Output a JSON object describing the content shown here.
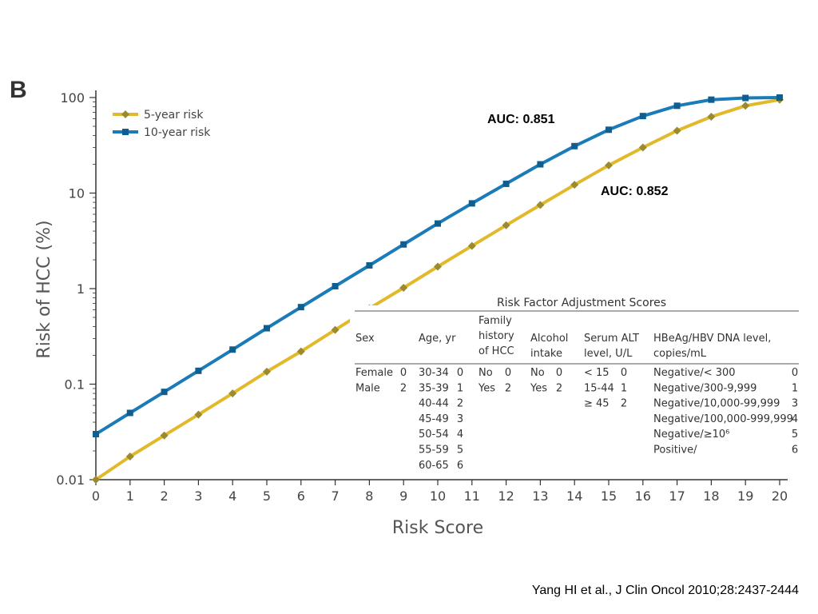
{
  "panel_label": "B",
  "citation": "Yang HI et al., J Clin Oncol 2010;28:2437-2444",
  "colors": {
    "five_year": "#e2b92a",
    "five_year_marker": "#9a8a30",
    "ten_year": "#1a7bb8",
    "ten_year_marker": "#0e5f90",
    "axis": "#333333"
  },
  "chart_data": {
    "type": "line",
    "xlabel": "Risk Score",
    "ylabel": "Risk of HCC (%)",
    "yscale": "log",
    "xlim": [
      0,
      20
    ],
    "ylim": [
      0.01,
      100
    ],
    "x": [
      0,
      1,
      2,
      3,
      4,
      5,
      6,
      7,
      8,
      9,
      10,
      11,
      12,
      13,
      14,
      15,
      16,
      17,
      18,
      19,
      20
    ],
    "x_tick_labels": [
      "0",
      "1",
      "2",
      "3",
      "4",
      "5",
      "6",
      "7",
      "8",
      "9",
      "10",
      "11",
      "12",
      "13",
      "14",
      "15",
      "16",
      "17",
      "18",
      "19",
      "20"
    ],
    "y_ticks": [
      0.01,
      0.1,
      1,
      10,
      100
    ],
    "y_tick_labels": [
      "0.01",
      "0.1",
      "1",
      "10",
      "100"
    ],
    "legend_position": "top-left",
    "series": [
      {
        "name": "5-year risk",
        "marker": "diamond",
        "values": [
          0.01,
          0.0175,
          0.029,
          0.048,
          0.08,
          0.135,
          0.22,
          0.37,
          0.62,
          1.02,
          1.7,
          2.8,
          4.6,
          7.5,
          12.2,
          19.5,
          30.0,
          45.0,
          63.0,
          82.0,
          95.0
        ],
        "annotation": "AUC: 0.852"
      },
      {
        "name": "10-year risk",
        "marker": "square",
        "values": [
          0.03,
          0.05,
          0.083,
          0.138,
          0.23,
          0.385,
          0.64,
          1.06,
          1.75,
          2.9,
          4.8,
          7.8,
          12.5,
          20.0,
          31.0,
          46.0,
          64.0,
          82.0,
          95.0,
          99.0,
          100.0
        ],
        "annotation": "AUC: 0.851"
      }
    ]
  },
  "table": {
    "title": "Risk Factor Adjustment Scores",
    "headers": {
      "sex": "Sex",
      "age": "Age, yr",
      "family": [
        "Family",
        "history",
        "of HCC"
      ],
      "alcohol": [
        "Alcohol",
        "intake"
      ],
      "alt": [
        "Serum ALT",
        "level, U/L"
      ],
      "hbeag": [
        "HBeAg/HBV DNA level,",
        "copies/mL"
      ]
    },
    "sex": [
      {
        "label": "Female",
        "score": "0"
      },
      {
        "label": "Male",
        "score": "2"
      }
    ],
    "age": [
      {
        "label": "30-34",
        "score": "0"
      },
      {
        "label": "35-39",
        "score": "1"
      },
      {
        "label": "40-44",
        "score": "2"
      },
      {
        "label": "45-49",
        "score": "3"
      },
      {
        "label": "50-54",
        "score": "4"
      },
      {
        "label": "55-59",
        "score": "5"
      },
      {
        "label": "60-65",
        "score": "6"
      }
    ],
    "family": [
      {
        "label": "No",
        "score": "0"
      },
      {
        "label": "Yes",
        "score": "2"
      }
    ],
    "alcohol": [
      {
        "label": "No",
        "score": "0"
      },
      {
        "label": "Yes",
        "score": "2"
      }
    ],
    "alt": [
      {
        "label": "< 15",
        "score": "0"
      },
      {
        "label": "15-44",
        "score": "1"
      },
      {
        "label": "≥ 45",
        "score": "2"
      }
    ],
    "hbeag": [
      {
        "label": "Negative/< 300",
        "score": "0"
      },
      {
        "label": "Negative/300-9,999",
        "score": "1"
      },
      {
        "label": "Negative/10,000-99,999",
        "score": "3"
      },
      {
        "label": "Negative/100,000-999,999",
        "score": "4"
      },
      {
        "label": "Negative/≥10⁶",
        "score": "5"
      },
      {
        "label": "Positive/",
        "score": "6"
      }
    ]
  }
}
